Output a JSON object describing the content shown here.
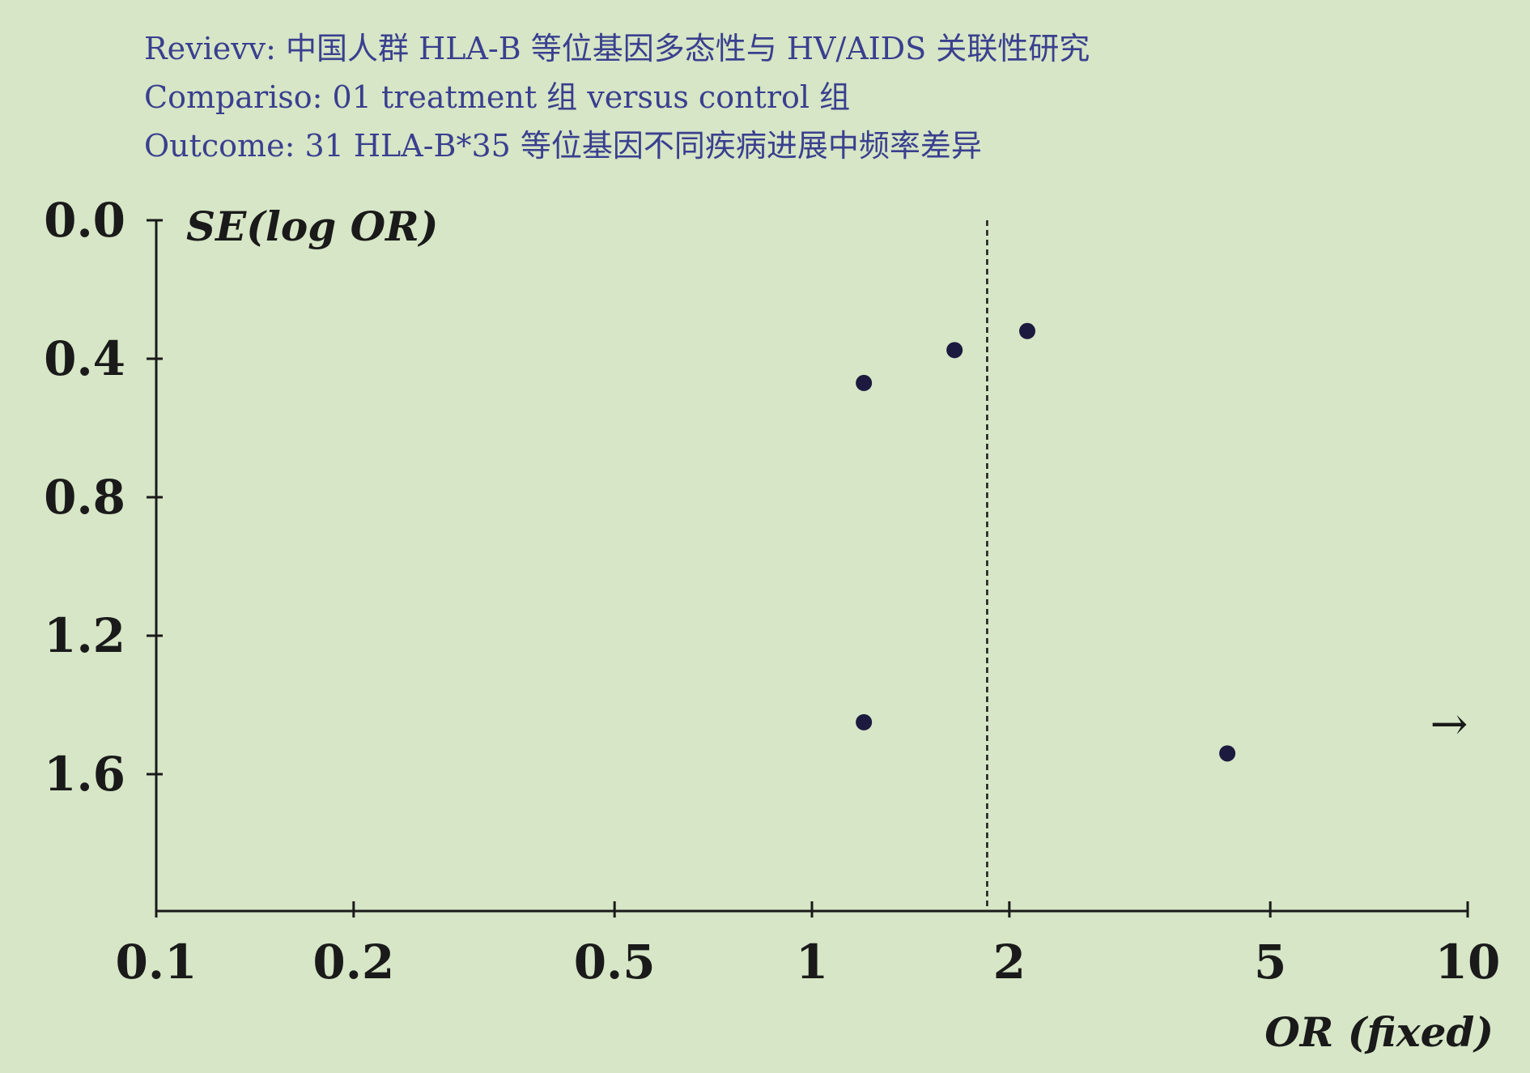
{
  "header": {
    "review": "Revievv: 中国人群 HLA-B 等位基因多态性与 HV/AIDS 关联性研究",
    "comparison": "Compariso: 01 treatment 组 versus control 组",
    "outcome": "Outcome: 31 HLA-B*35 等位基因不同疾病进展中频率差异"
  },
  "colors": {
    "background": "#d6e6c6",
    "header_text": "#3a3f8f",
    "points": "#1c1a3e",
    "axis": "#1a1a1a"
  },
  "chart_data": {
    "type": "scatter",
    "subtype": "funnel-plot",
    "xlabel": "OR (fixed)",
    "ylabel": "SE(log OR)",
    "x_scale": "log",
    "xlim": [
      0.1,
      10
    ],
    "x_ticks": [
      0.1,
      0.2,
      0.5,
      1,
      2,
      5,
      10
    ],
    "x_tick_labels": [
      "0.1",
      "0.2",
      "0.5",
      "1",
      "2",
      "5",
      "10"
    ],
    "ylim": [
      0,
      2.0
    ],
    "y_inverted": true,
    "y_ticks": [
      0.0,
      0.4,
      0.8,
      1.2,
      1.6
    ],
    "y_tick_labels": [
      "0.0",
      "0.4",
      "0.8",
      "1.2",
      "1.6"
    ],
    "pooled_estimate": 1.85,
    "points": [
      {
        "x": 1.2,
        "y": 0.47
      },
      {
        "x": 1.65,
        "y": 0.375
      },
      {
        "x": 2.13,
        "y": 0.32
      },
      {
        "x": 1.2,
        "y": 1.45
      },
      {
        "x": 4.3,
        "y": 1.54
      }
    ],
    "off_scale_arrow": {
      "y": 1.46,
      "glyph": "→"
    },
    "grid": false,
    "legend": "none"
  }
}
